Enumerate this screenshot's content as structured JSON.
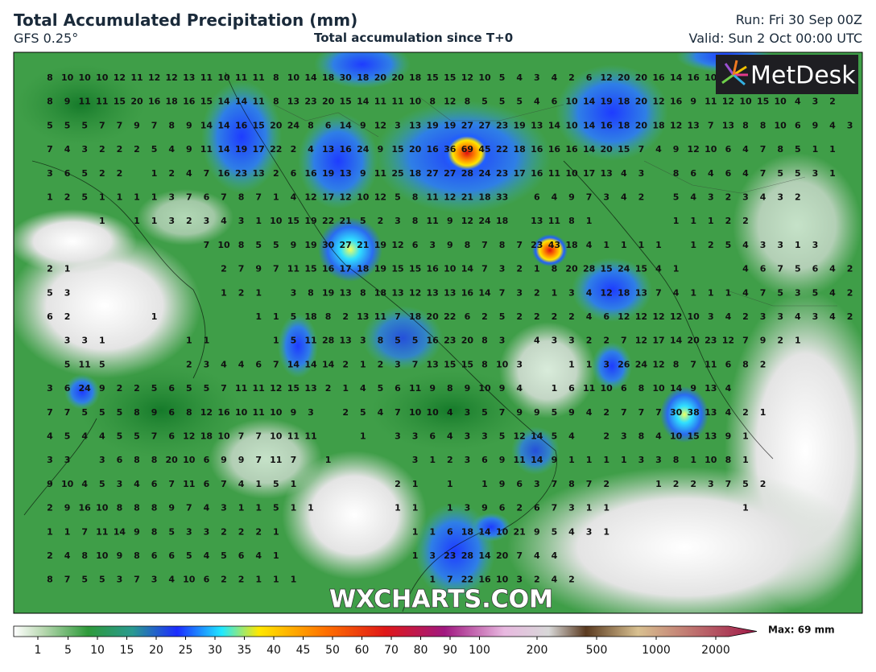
{
  "header": {
    "title": "Total Accumulated Precipitation (mm)",
    "model": "GFS 0.25°",
    "subtitle": "Total accumulation since T+0",
    "run": "Run: Fri 30 Sep 00Z",
    "valid": "Valid: Sun 2 Oct 00:00 UTC"
  },
  "logo": "MetDesk",
  "watermark": "WXCHARTS.COM",
  "map": {
    "grid": [
      [
        8,
        10,
        10,
        10,
        12,
        11,
        12,
        12,
        13,
        11,
        10,
        11,
        11,
        8,
        10,
        14,
        18,
        30,
        18,
        20,
        20,
        18,
        15,
        15,
        12,
        10,
        5,
        4,
        3,
        4,
        2,
        6,
        12,
        20,
        20,
        16,
        14,
        16,
        10
      ],
      [
        8,
        9,
        11,
        11,
        15,
        20,
        16,
        18,
        16,
        15,
        14,
        14,
        11,
        8,
        13,
        23,
        20,
        15,
        14,
        11,
        11,
        10,
        8,
        12,
        8,
        5,
        5,
        5,
        4,
        6,
        10,
        14,
        19,
        18,
        20,
        12,
        16,
        9,
        11,
        12,
        10,
        15,
        10,
        4,
        3,
        2
      ],
      [
        5,
        5,
        5,
        7,
        7,
        9,
        7,
        8,
        9,
        14,
        14,
        16,
        15,
        20,
        24,
        8,
        6,
        14,
        9,
        12,
        3,
        13,
        19,
        19,
        27,
        27,
        23,
        19,
        13,
        14,
        10,
        14,
        16,
        18,
        20,
        18,
        12,
        13,
        7,
        13,
        8,
        8,
        10,
        6,
        9,
        4,
        3
      ],
      [
        7,
        4,
        3,
        2,
        2,
        2,
        5,
        4,
        9,
        11,
        14,
        19,
        17,
        22,
        2,
        4,
        13,
        16,
        24,
        9,
        15,
        20,
        16,
        36,
        69,
        45,
        22,
        18,
        16,
        16,
        16,
        14,
        20,
        15,
        7,
        4,
        9,
        12,
        10,
        6,
        4,
        7,
        8,
        5,
        1,
        1
      ],
      [
        3,
        6,
        5,
        2,
        2,
        null,
        1,
        2,
        4,
        7,
        16,
        23,
        13,
        2,
        6,
        16,
        19,
        13,
        9,
        11,
        25,
        18,
        27,
        27,
        28,
        24,
        23,
        17,
        16,
        11,
        10,
        17,
        13,
        4,
        3,
        null,
        8,
        6,
        4,
        6,
        4,
        7,
        5,
        5,
        3,
        1
      ],
      [
        1,
        2,
        5,
        1,
        1,
        1,
        1,
        3,
        7,
        6,
        7,
        8,
        7,
        1,
        4,
        12,
        17,
        12,
        10,
        12,
        5,
        8,
        11,
        12,
        21,
        18,
        33,
        null,
        6,
        4,
        9,
        7,
        3,
        4,
        2,
        null,
        5,
        4,
        3,
        2,
        3,
        4,
        3,
        2
      ],
      [
        null,
        null,
        null,
        1,
        null,
        1,
        1,
        3,
        2,
        3,
        4,
        3,
        1,
        10,
        15,
        19,
        22,
        21,
        5,
        2,
        3,
        8,
        11,
        9,
        12,
        24,
        18,
        null,
        13,
        11,
        8,
        1,
        null,
        null,
        null,
        null,
        1,
        1,
        1,
        2,
        2
      ],
      [
        null,
        null,
        null,
        null,
        null,
        null,
        null,
        null,
        null,
        7,
        10,
        8,
        5,
        5,
        9,
        19,
        30,
        27,
        21,
        19,
        12,
        6,
        3,
        9,
        8,
        7,
        8,
        7,
        23,
        43,
        18,
        4,
        1,
        1,
        1,
        1,
        null,
        1,
        2,
        5,
        4,
        3,
        3,
        1,
        3
      ],
      [
        2,
        1,
        null,
        null,
        null,
        null,
        null,
        null,
        null,
        null,
        2,
        7,
        9,
        7,
        11,
        15,
        16,
        17,
        18,
        19,
        15,
        15,
        16,
        10,
        14,
        7,
        3,
        2,
        1,
        8,
        20,
        28,
        15,
        24,
        15,
        4,
        1,
        null,
        null,
        null,
        4,
        6,
        7,
        5,
        6,
        4,
        2
      ],
      [
        5,
        3,
        null,
        null,
        null,
        null,
        null,
        null,
        null,
        null,
        1,
        2,
        1,
        null,
        3,
        8,
        19,
        13,
        8,
        18,
        13,
        12,
        13,
        13,
        16,
        14,
        7,
        3,
        2,
        1,
        3,
        4,
        12,
        18,
        13,
        7,
        4,
        1,
        1,
        1,
        4,
        7,
        5,
        3,
        5,
        4,
        2
      ],
      [
        6,
        2,
        null,
        null,
        null,
        null,
        1,
        null,
        null,
        null,
        null,
        null,
        1,
        1,
        5,
        18,
        8,
        2,
        13,
        11,
        7,
        18,
        20,
        22,
        6,
        2,
        5,
        2,
        2,
        2,
        2,
        4,
        6,
        12,
        12,
        12,
        12,
        10,
        3,
        4,
        2,
        3,
        3,
        4,
        3,
        4,
        2
      ],
      [
        null,
        3,
        3,
        1,
        null,
        null,
        null,
        null,
        1,
        1,
        null,
        null,
        null,
        1,
        5,
        11,
        28,
        13,
        3,
        8,
        5,
        5,
        16,
        23,
        20,
        8,
        3,
        null,
        4,
        3,
        3,
        2,
        2,
        7,
        12,
        17,
        14,
        20,
        23,
        12,
        7,
        9,
        2,
        1
      ],
      [
        null,
        5,
        11,
        5,
        null,
        null,
        null,
        null,
        2,
        3,
        4,
        4,
        6,
        7,
        14,
        14,
        14,
        2,
        1,
        2,
        3,
        7,
        13,
        15,
        15,
        8,
        10,
        3,
        null,
        null,
        1,
        1,
        3,
        26,
        24,
        12,
        8,
        7,
        11,
        6,
        8,
        2
      ],
      [
        3,
        6,
        24,
        9,
        2,
        2,
        5,
        6,
        5,
        5,
        7,
        11,
        11,
        12,
        15,
        13,
        2,
        1,
        4,
        5,
        6,
        11,
        9,
        8,
        9,
        10,
        9,
        4,
        null,
        1,
        6,
        11,
        10,
        6,
        8,
        10,
        14,
        9,
        13,
        4
      ],
      [
        7,
        7,
        5,
        5,
        5,
        8,
        9,
        6,
        8,
        12,
        16,
        10,
        11,
        10,
        9,
        3,
        null,
        2,
        5,
        4,
        7,
        10,
        10,
        4,
        3,
        5,
        7,
        9,
        9,
        5,
        9,
        4,
        2,
        7,
        7,
        7,
        30,
        38,
        13,
        4,
        2,
        1
      ],
      [
        4,
        5,
        4,
        4,
        5,
        5,
        7,
        6,
        12,
        18,
        10,
        7,
        7,
        10,
        11,
        11,
        null,
        null,
        1,
        null,
        3,
        3,
        6,
        4,
        3,
        3,
        5,
        12,
        14,
        5,
        4,
        null,
        2,
        3,
        8,
        4,
        10,
        15,
        13,
        9,
        1
      ],
      [
        3,
        3,
        null,
        3,
        6,
        8,
        8,
        20,
        10,
        6,
        9,
        9,
        7,
        11,
        7,
        null,
        1,
        null,
        null,
        null,
        null,
        3,
        1,
        2,
        3,
        6,
        9,
        11,
        14,
        9,
        1,
        1,
        1,
        1,
        3,
        3,
        8,
        1,
        10,
        8,
        1
      ],
      [
        9,
        10,
        4,
        5,
        3,
        4,
        6,
        7,
        11,
        6,
        7,
        4,
        1,
        5,
        1,
        null,
        null,
        null,
        null,
        null,
        2,
        1,
        null,
        1,
        null,
        1,
        9,
        6,
        3,
        7,
        8,
        7,
        2,
        null,
        null,
        1,
        2,
        2,
        3,
        7,
        5,
        2
      ],
      [
        2,
        9,
        16,
        10,
        8,
        8,
        8,
        9,
        7,
        4,
        3,
        1,
        1,
        5,
        1,
        1,
        null,
        null,
        null,
        null,
        1,
        1,
        null,
        1,
        3,
        9,
        6,
        2,
        6,
        7,
        3,
        1,
        1,
        null,
        null,
        null,
        null,
        null,
        null,
        null,
        1
      ],
      [
        1,
        1,
        7,
        11,
        14,
        9,
        8,
        5,
        3,
        3,
        2,
        2,
        2,
        1,
        null,
        null,
        null,
        null,
        null,
        null,
        null,
        1,
        1,
        6,
        18,
        14,
        10,
        21,
        9,
        5,
        4,
        3,
        1
      ],
      [
        2,
        4,
        8,
        10,
        9,
        8,
        6,
        6,
        5,
        4,
        5,
        6,
        4,
        1,
        null,
        null,
        null,
        null,
        null,
        null,
        null,
        1,
        3,
        23,
        28,
        14,
        20,
        7,
        4,
        4
      ],
      [
        8,
        7,
        5,
        5,
        3,
        7,
        3,
        4,
        10,
        6,
        2,
        2,
        1,
        1,
        1,
        null,
        null,
        null,
        null,
        null,
        null,
        null,
        1,
        7,
        22,
        16,
        10,
        3,
        2,
        4,
        2
      ]
    ]
  },
  "colorbar": {
    "labels": [
      1,
      5,
      10,
      15,
      20,
      25,
      30,
      35,
      40,
      45,
      50,
      60,
      70,
      80,
      90,
      100,
      200,
      500,
      1000,
      2000
    ],
    "max_label": "Max: 69 mm"
  }
}
